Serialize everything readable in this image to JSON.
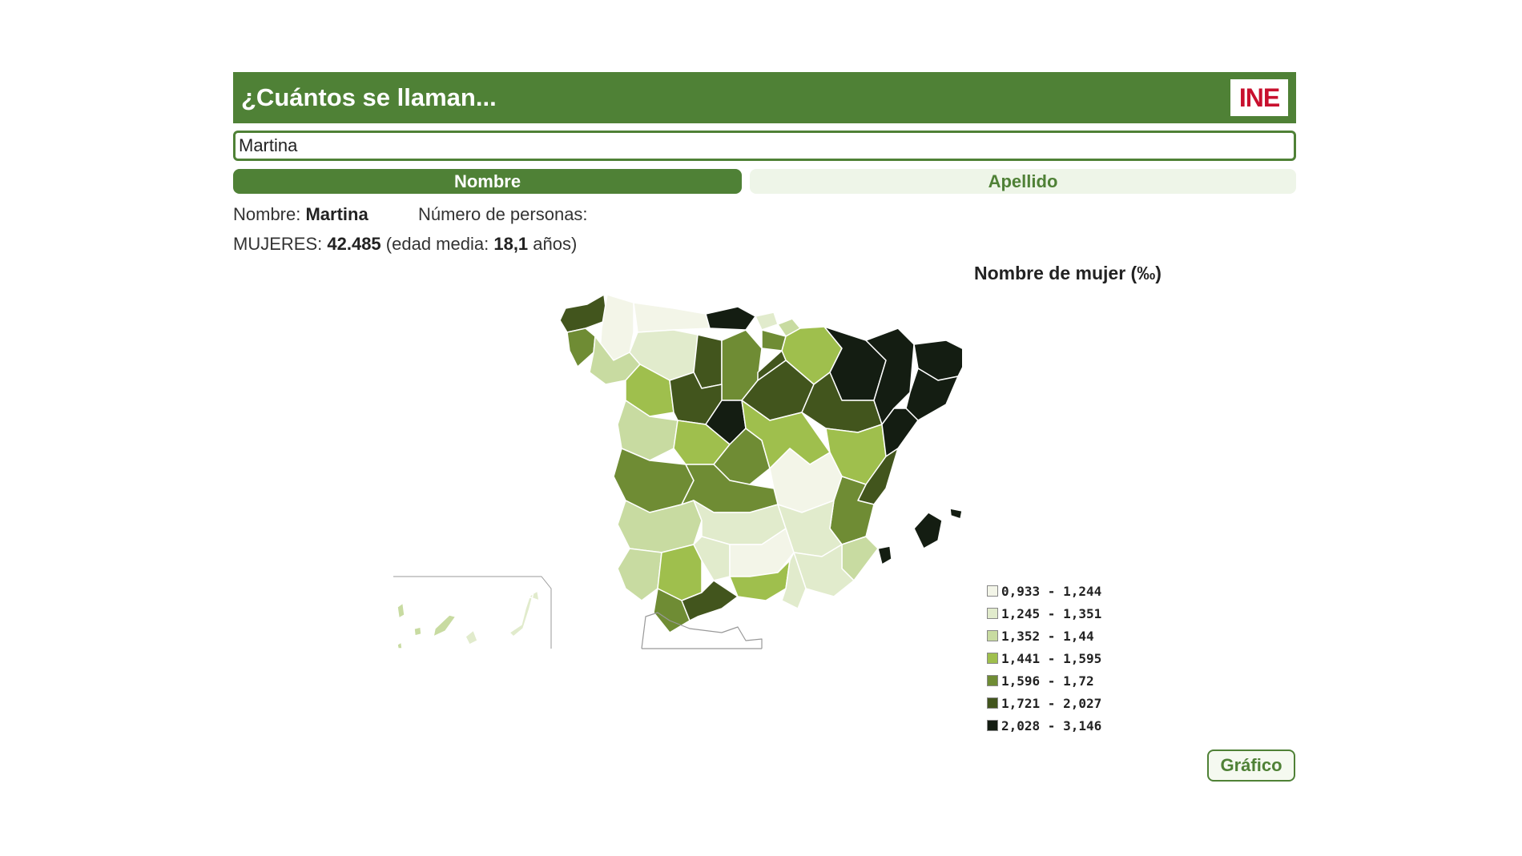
{
  "header": {
    "title": "¿Cuántos se llaman...",
    "logo_text": "INE"
  },
  "search": {
    "value": "Martina"
  },
  "tabs": [
    {
      "label": "Nombre",
      "active": true
    },
    {
      "label": "Apellido",
      "active": false
    }
  ],
  "info": {
    "nombre_label": "Nombre:",
    "nombre_value": "Martina",
    "personas_label": "Número de personas:",
    "mujeres_label": "MUJERES:",
    "mujeres_value": "42.485",
    "edad_open": "(edad media:",
    "edad_value": "18,1",
    "edad_unit": "años)"
  },
  "map": {
    "title": "Nombre de mujer (‰)",
    "legend": [
      {
        "label": "0,933 - 1,244",
        "color": "#f3f5e8"
      },
      {
        "label": "1,245 - 1,351",
        "color": "#e1ebcc"
      },
      {
        "label": "1,352 - 1,44",
        "color": "#c8dba1"
      },
      {
        "label": "1,441 - 1,595",
        "color": "#9fbf4d"
      },
      {
        "label": "1,596 - 1,72",
        "color": "#6f8c34"
      },
      {
        "label": "1,721 - 2,027",
        "color": "#42551d"
      },
      {
        "label": "2,028 - 3,146",
        "color": "#141d12"
      }
    ]
  },
  "buttons": {
    "grafico": "Gráfico"
  },
  "colors": {
    "brand_green": "#4f8136",
    "brand_red": "#c8102e"
  }
}
